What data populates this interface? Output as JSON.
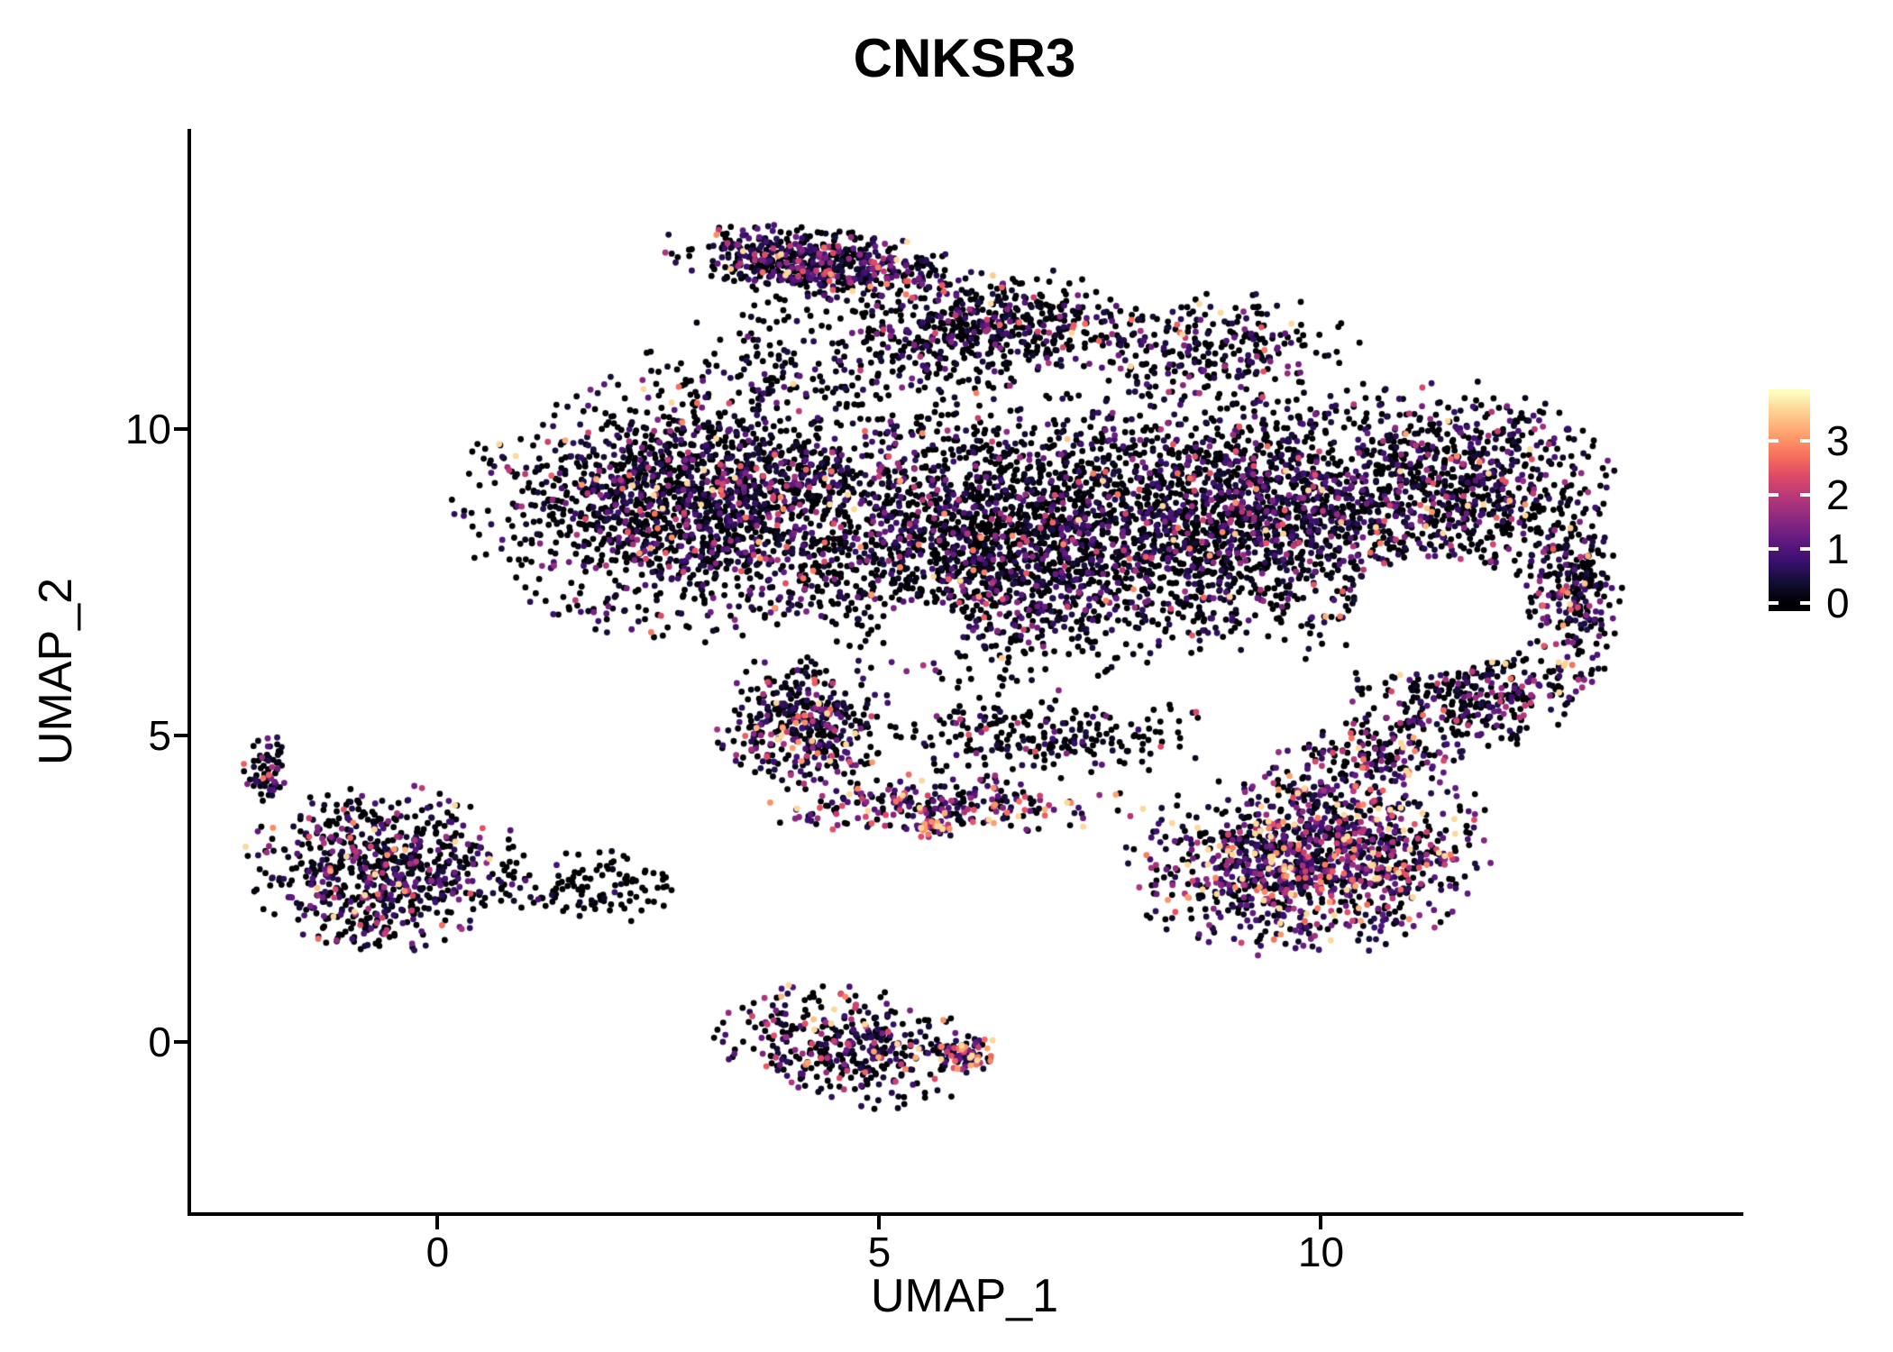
{
  "figure": {
    "background": "#ffffff",
    "axis_color": "#000000",
    "text_color": "#000000"
  },
  "chart_data": {
    "type": "scatter",
    "title": "CNKSR3",
    "xlabel": "UMAP_1",
    "ylabel": "UMAP_2",
    "xlim": [
      -2.81,
      14.76
    ],
    "ylim": [
      -2.8,
      14.86
    ],
    "xticks": [
      0,
      5,
      10
    ],
    "yticks": [
      0,
      5,
      10
    ],
    "grid": false,
    "legend_position": "right",
    "point_radius_px": 3.4,
    "colormap": "magma",
    "color_domain": [
      0,
      3.9
    ],
    "colorbar": {
      "ticks": [
        0,
        1,
        2,
        3
      ],
      "domain": [
        -0.15,
        3.95
      ]
    },
    "seed": 42,
    "holes": [
      [
        11.3,
        6.95,
        0.95
      ],
      [
        5.5,
        6.7,
        0.45
      ]
    ],
    "clusters": [
      {
        "name": "top-ridge",
        "cx": 4.3,
        "cy": 12.7,
        "rx": 1.7,
        "ry": 0.55,
        "rot": -10,
        "n": 600,
        "p0": 0.4,
        "scale": 0.9
      },
      {
        "name": "upper-mid",
        "cx": 6.3,
        "cy": 11.7,
        "rx": 1.5,
        "ry": 0.9,
        "rot": 0,
        "n": 400,
        "p0": 0.55,
        "scale": 0.7
      },
      {
        "name": "upper-scatter",
        "cx": 4.9,
        "cy": 11.2,
        "rx": 2.4,
        "ry": 1.2,
        "rot": 0,
        "n": 300,
        "p0": 0.6,
        "scale": 0.6
      },
      {
        "name": "top-right-scatter",
        "cx": 8.6,
        "cy": 11.3,
        "rx": 1.8,
        "ry": 0.9,
        "rot": 0,
        "n": 280,
        "p0": 0.5,
        "scale": 0.9
      },
      {
        "name": "main-left",
        "cx": 2.9,
        "cy": 8.8,
        "rx": 2.5,
        "ry": 2.1,
        "rot": 0,
        "n": 1800,
        "p0": 0.5,
        "scale": 0.8
      },
      {
        "name": "main-center",
        "cx": 6.4,
        "cy": 8.2,
        "rx": 2.7,
        "ry": 2.3,
        "rot": 0,
        "n": 2100,
        "p0": 0.55,
        "scale": 0.7
      },
      {
        "name": "main-right",
        "cx": 9.4,
        "cy": 8.6,
        "rx": 2.3,
        "ry": 2.2,
        "rot": 0,
        "n": 1600,
        "p0": 0.5,
        "scale": 0.8
      },
      {
        "name": "right-lobe",
        "cx": 11.7,
        "cy": 9.1,
        "rx": 1.6,
        "ry": 1.6,
        "rot": 0,
        "n": 650,
        "p0": 0.5,
        "scale": 0.8
      },
      {
        "name": "right-edge",
        "cx": 12.85,
        "cy": 7.3,
        "rx": 0.55,
        "ry": 1.7,
        "rot": 0,
        "n": 280,
        "p0": 0.45,
        "scale": 0.9
      },
      {
        "name": "right-mid",
        "cx": 11.7,
        "cy": 5.7,
        "rx": 1.3,
        "ry": 1.0,
        "rot": 0,
        "n": 320,
        "p0": 0.45,
        "scale": 0.9
      },
      {
        "name": "bottom-right",
        "cx": 9.9,
        "cy": 3.0,
        "rx": 2.0,
        "ry": 1.5,
        "rot": 12,
        "n": 1250,
        "p0": 0.28,
        "scale": 1.2
      },
      {
        "name": "right-gap",
        "cx": 10.6,
        "cy": 4.7,
        "rx": 1.0,
        "ry": 0.6,
        "rot": 0,
        "n": 160,
        "p0": 0.4,
        "scale": 1.1
      },
      {
        "name": "mid-band",
        "cx": 5.8,
        "cy": 3.85,
        "rx": 2.1,
        "ry": 0.5,
        "rot": 0,
        "n": 260,
        "p0": 0.3,
        "scale": 1.4
      },
      {
        "name": "band-hotspot",
        "cx": 5.6,
        "cy": 3.5,
        "rx": 0.3,
        "ry": 0.2,
        "rot": 0,
        "n": 40,
        "p0": 0.1,
        "scale": 2.2
      },
      {
        "name": "diag-strip",
        "cx": 4.15,
        "cy": 5.2,
        "rx": 0.95,
        "ry": 1.05,
        "rot": 25,
        "n": 400,
        "p0": 0.38,
        "scale": 1.0
      },
      {
        "name": "mid-sparse",
        "cx": 6.9,
        "cy": 5.0,
        "rx": 1.8,
        "ry": 0.7,
        "rot": 0,
        "n": 230,
        "p0": 0.6,
        "scale": 0.7
      },
      {
        "name": "left-cluster",
        "cx": -0.6,
        "cy": 2.8,
        "rx": 1.5,
        "ry": 1.3,
        "rot": 0,
        "n": 720,
        "p0": 0.5,
        "scale": 0.9
      },
      {
        "name": "left-arm",
        "cx": -1.95,
        "cy": 4.5,
        "rx": 0.28,
        "ry": 0.55,
        "rot": 0,
        "n": 70,
        "p0": 0.5,
        "scale": 0.8
      },
      {
        "name": "left-tail",
        "cx": 1.7,
        "cy": 2.5,
        "rx": 1.2,
        "ry": 0.6,
        "rot": 0,
        "n": 110,
        "p0": 0.75,
        "scale": 0.4
      },
      {
        "name": "bottom-center",
        "cx": 4.7,
        "cy": -0.1,
        "rx": 1.5,
        "ry": 0.9,
        "rot": -15,
        "n": 400,
        "p0": 0.45,
        "scale": 1.0
      },
      {
        "name": "bottom-center-hi",
        "cx": 5.95,
        "cy": -0.2,
        "rx": 0.4,
        "ry": 0.35,
        "rot": 0,
        "n": 80,
        "p0": 0.15,
        "scale": 1.6
      }
    ]
  }
}
